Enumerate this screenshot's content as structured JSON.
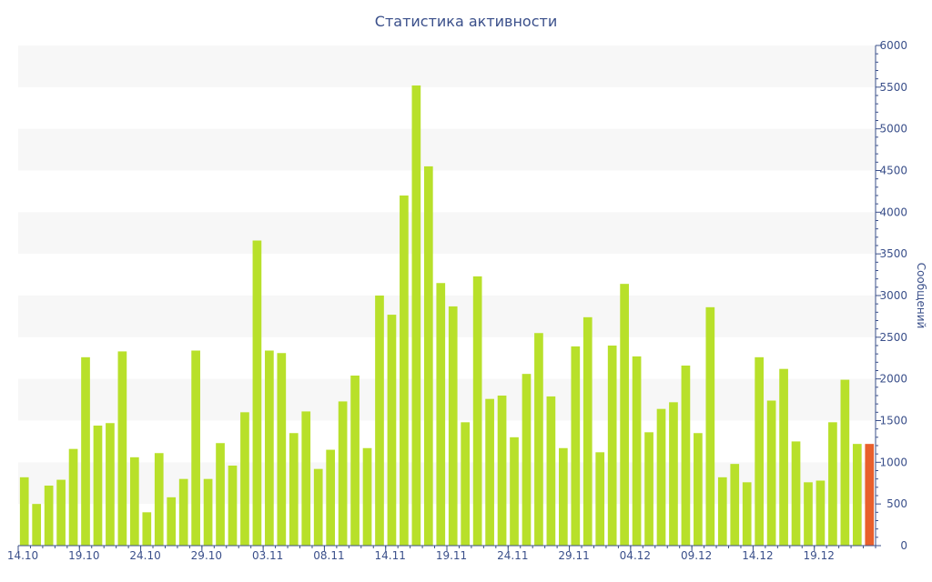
{
  "chart_data": {
    "type": "bar",
    "title": "Статистика активности",
    "xlabel": "",
    "ylabel": "Сообщений",
    "ylim": [
      0,
      6000
    ],
    "y_ticks": [
      0,
      500,
      1000,
      1500,
      2000,
      2500,
      3000,
      3500,
      4000,
      4500,
      5000,
      5500,
      6000
    ],
    "y_axis_side": "right",
    "grid": "horizontal alternating bands",
    "colors": {
      "bar": "#b8e02a",
      "highlight": "#e8602c",
      "axis": "#3a4f8a",
      "band": "#f7f7f7"
    },
    "x_tick_labels": [
      {
        "label": "14.10",
        "index": 0
      },
      {
        "label": "19.10",
        "index": 5
      },
      {
        "label": "24.10",
        "index": 10
      },
      {
        "label": "29.10",
        "index": 15
      },
      {
        "label": "03.11",
        "index": 20
      },
      {
        "label": "08.11",
        "index": 25
      },
      {
        "label": "14.11",
        "index": 30
      },
      {
        "label": "19.11",
        "index": 35
      },
      {
        "label": "24.11",
        "index": 40
      },
      {
        "label": "29.11",
        "index": 45
      },
      {
        "label": "04.12",
        "index": 50
      },
      {
        "label": "09.12",
        "index": 55
      },
      {
        "label": "14.12",
        "index": 60
      },
      {
        "label": "19.12",
        "index": 65
      }
    ],
    "highlight_index": 69,
    "values": [
      820,
      500,
      720,
      790,
      1160,
      2260,
      1440,
      1470,
      2330,
      1060,
      400,
      1110,
      580,
      800,
      2340,
      800,
      1230,
      960,
      1600,
      3660,
      2340,
      2310,
      1350,
      1610,
      920,
      1150,
      1730,
      2040,
      1170,
      3000,
      2770,
      4200,
      5520,
      4550,
      3150,
      2870,
      1480,
      3230,
      1760,
      1800,
      1300,
      2060,
      2550,
      1790,
      1170,
      2390,
      2740,
      1120,
      2400,
      3140,
      2270,
      1360,
      1640,
      1720,
      2160,
      1350,
      2860,
      820,
      980,
      760,
      2260,
      1740,
      2120,
      1250,
      760,
      780,
      1480,
      1990,
      1220,
      1220
    ]
  }
}
